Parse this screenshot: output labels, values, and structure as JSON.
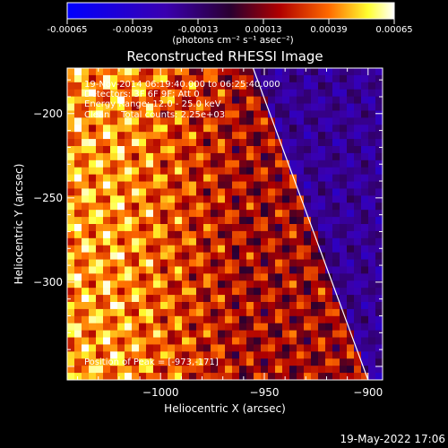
{
  "colorbar": {
    "tick_labels": [
      "-0.00065",
      "-0.00039",
      "-0.00013",
      "0.00013",
      "0.00039",
      "0.00065"
    ],
    "unit_label": "(photons cm⁻² s⁻¹ asec⁻²)",
    "range": [
      -0.00065,
      0.00065
    ]
  },
  "title": "Reconstructed RHESSI Image",
  "info_lines": [
    "19-Nov-2014 06:19:40.000 to 06:25:40.000",
    "Detectors: 3F 6F 9F; Att 0",
    "Energy Range: 12.0 - 25.0 keV",
    "Clean    Total counts: 2.25e+03"
  ],
  "peak_label": "Position of Peak = [-973,-171]",
  "footer_timestamp": "19-May-2022 17:06",
  "colors": {
    "limb_line": "#ffffff",
    "background": "#000000",
    "text": "#ffffff"
  },
  "chart_data": {
    "type": "heatmap",
    "title": "Reconstructed RHESSI Image",
    "xlabel": "Heliocentric X (arcsec)",
    "ylabel": "Heliocentric Y (arcsec)",
    "xlim": [
      -1045,
      -893
    ],
    "ylim": [
      -358,
      -173
    ],
    "xticks": [
      -1000,
      -950,
      -900
    ],
    "yticks": [
      -200,
      -250,
      -300
    ],
    "peak_position": [
      -973,
      -171
    ],
    "solar_limb_line": [
      [
        -956,
        -171
      ],
      [
        -900,
        -358
      ]
    ],
    "colormap": "blue-purple-red-yellow-white"
  }
}
